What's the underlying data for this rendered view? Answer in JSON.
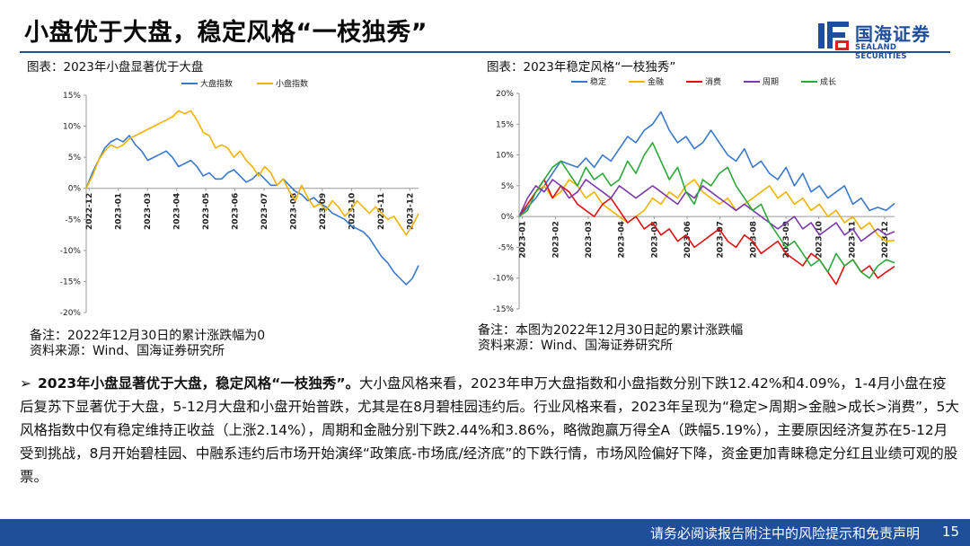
{
  "header": {
    "title": "小盘优于大盘，稳定风格“一枝独秀”",
    "logo_cn": "国海证券",
    "logo_en": "SEALAND SECURITIES"
  },
  "left_chart": {
    "caption": "图表：2023年小盘显著优于大盘",
    "note": "备注：2022年12月30日的累计涨跌幅为0",
    "source": "资料来源：Wind、国海证券研究所"
  },
  "right_chart": {
    "caption": "图表：2023年稳定风格“一枝独秀”",
    "note": "备注：本图为2022年12月30日起的累计涨跌幅",
    "source": "资料来源：Wind、国海证券研究所"
  },
  "chart_data": [
    {
      "type": "line",
      "title": "2023年小盘显著优于大盘",
      "ylim": [
        -20,
        15
      ],
      "yticks": [
        "15%",
        "10%",
        "5%",
        "0%",
        "-5%",
        "-10%",
        "-15%",
        "-20%"
      ],
      "ytick_values": [
        15,
        10,
        5,
        0,
        -5,
        -10,
        -15,
        -20
      ],
      "x_labels": [
        "2022-12",
        "2023-01",
        "2023-03",
        "2023-04",
        "2023-05",
        "2023-06",
        "2023-07",
        "2023-08",
        "2023-09",
        "2023-10",
        "2023-11",
        "2023-12"
      ],
      "series": [
        {
          "name": "大盘指数",
          "color": "#3a78c9",
          "values": [
            0,
            2.5,
            4.5,
            6.5,
            7.5,
            8,
            7.5,
            8.5,
            7,
            6,
            4.5,
            5,
            5.5,
            6,
            5,
            3.5,
            4,
            4.5,
            3.5,
            2,
            2.5,
            1.5,
            1.5,
            2.5,
            3,
            2,
            1,
            1.5,
            2.5,
            1.5,
            0.5,
            0.5,
            1.5,
            0.5,
            -0.5,
            -1,
            -2,
            -1.5,
            -2.5,
            -3,
            -4,
            -4.5,
            -5,
            -6,
            -6.5,
            -7,
            -8,
            -9.5,
            -11,
            -12,
            -13.5,
            -14.5,
            -15.5,
            -14.5,
            -12.42
          ]
        },
        {
          "name": "小盘指数",
          "color": "#f0b400",
          "values": [
            0,
            2,
            4.5,
            6,
            7,
            6.5,
            7,
            8,
            8.5,
            9,
            9.5,
            10,
            10.5,
            11,
            11.5,
            12.5,
            12,
            12.5,
            11,
            9,
            8.5,
            6.5,
            7,
            6.5,
            5,
            6,
            4.5,
            3.5,
            2,
            3.5,
            2.5,
            0.5,
            1.5,
            -0.5,
            -2,
            0.5,
            -1.5,
            -3,
            -2.5,
            -3.5,
            -2,
            -3,
            -4.5,
            -3.5,
            -2,
            -3,
            -4,
            -3,
            -4,
            -5,
            -4.5,
            -6,
            -7.5,
            -6,
            -4.09
          ]
        }
      ]
    },
    {
      "type": "line",
      "title": "2023年稳定风格“一枝独秀”",
      "ylim": [
        -15,
        20
      ],
      "yticks": [
        "20%",
        "15%",
        "10%",
        "5%",
        "0%",
        "-5%",
        "-10%",
        "-15%"
      ],
      "ytick_values": [
        20,
        15,
        10,
        5,
        0,
        -5,
        -10,
        -15
      ],
      "x_labels": [
        "2023-01",
        "2023-02",
        "2023-03",
        "2023-04",
        "2023-05",
        "2023-06",
        "2023-07",
        "2023-08",
        "2023-09",
        "2023-10",
        "2023-11",
        "2023-12"
      ],
      "series": [
        {
          "name": "稳定",
          "color": "#3a78c9",
          "values": [
            0,
            1.5,
            3,
            5,
            7,
            9,
            8.5,
            8,
            9.5,
            8,
            10,
            9,
            11,
            13,
            12,
            14,
            15,
            17,
            14,
            12,
            13,
            11,
            12,
            14,
            12,
            10,
            9,
            11,
            8,
            9,
            7,
            6,
            8,
            5,
            7,
            4,
            5,
            3,
            4,
            5,
            2,
            3,
            1,
            1.5,
            1,
            2.14
          ]
        },
        {
          "name": "金融",
          "color": "#f0b400",
          "values": [
            0,
            2,
            4,
            5,
            3,
            4,
            6,
            5,
            3,
            4,
            2,
            1,
            0,
            -1,
            0,
            1,
            3,
            2,
            4,
            3,
            5,
            6,
            4,
            3,
            2,
            3,
            1,
            2,
            3,
            4,
            5,
            3,
            4,
            2,
            3,
            1,
            2,
            0,
            1,
            -1,
            0,
            -2,
            -1,
            -3,
            -4,
            -3.86
          ]
        },
        {
          "name": "消费",
          "color": "#e01010",
          "values": [
            0,
            2,
            4,
            6,
            3,
            5,
            4,
            2,
            1,
            0,
            2,
            3,
            1,
            -1,
            0,
            -2,
            -1,
            -3,
            -2,
            -4,
            -3,
            -5,
            -4,
            -3,
            -2,
            -4,
            -5,
            -3,
            -4,
            -6,
            -5,
            -4,
            -6,
            -7,
            -8,
            -6,
            -7,
            -9,
            -11,
            -8,
            -7,
            -9,
            -8,
            -10,
            -9,
            -8.1
          ]
        },
        {
          "name": "周期",
          "color": "#7b3aa8",
          "values": [
            0,
            3,
            5,
            4,
            6,
            5,
            3,
            4,
            6,
            5,
            4,
            3,
            5,
            4,
            3,
            4,
            5,
            4,
            3,
            2,
            4,
            3,
            5,
            4,
            3,
            2,
            1,
            2,
            1,
            0,
            -1,
            -2,
            -1,
            0,
            -2,
            -1,
            -3,
            -2,
            -1,
            -3,
            -2,
            -4,
            -3,
            -2,
            -3,
            -2.44
          ]
        },
        {
          "name": "成长",
          "color": "#2ca83a",
          "values": [
            0,
            1,
            4,
            6,
            8,
            9,
            7,
            5,
            8,
            6,
            7,
            5,
            6,
            9,
            7,
            10,
            12,
            9,
            6,
            8,
            4,
            2,
            6,
            5,
            7,
            8,
            5,
            3,
            1,
            2,
            -1,
            -3,
            -5,
            -4,
            -6,
            -8,
            -7,
            -9,
            -6,
            -8,
            -7,
            -9,
            -10,
            -8,
            -7,
            -7.5
          ]
        }
      ]
    }
  ],
  "body": {
    "bullet": "➢",
    "lead": "2023年小盘显著优于大盘，稳定风格“一枝独秀”。",
    "text": "大小盘风格来看，2023年申万大盘指数和小盘指数分别下跌12.42%和4.09%，1-4月小盘在疫后复苏下显著优于大盘，5-12月大盘和小盘开始普跌，尤其是在8月碧桂园违约后。行业风格来看，2023年呈现为“稳定>周期>金融>成长>消费”，5大风格指数中仅有稳定维持正收益（上涨2.14%），周期和金融分别下跌2.44%和3.86%，略微跑赢万得全A（跌幅5.19%），主要原因经济复苏在5-12月受到挑战，8月开始碧桂园、中融系违约后市场开始演绎“政策底-市场底/经济底”的下跌行情，市场风险偏好下降，资金更加青睐稳定分红且业绩可观的股票。"
  },
  "footer": {
    "disclaimer": "请务必阅读报告附注中的风险提示和免责声明",
    "page": "15"
  }
}
